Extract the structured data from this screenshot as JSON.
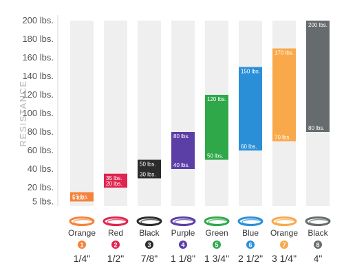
{
  "chart_data": {
    "type": "bar",
    "subtype": "floating-range",
    "ylabel": "RESISTANCE",
    "y_ticks": [
      "200 lbs.",
      "180 lbs.",
      "160 lbs.",
      "140 lbs.",
      "120 lbs.",
      "100 lbs.",
      "80 lbs.",
      "60 lbs.",
      "40 lbs.",
      "20 lbs.",
      "5 lbs."
    ],
    "y_tick_values": [
      200,
      180,
      160,
      140,
      120,
      100,
      80,
      60,
      40,
      20,
      5
    ],
    "ylim": [
      0,
      200
    ],
    "grid": false,
    "bands": [
      {
        "number": "1",
        "name": "Orange",
        "size": "1/4\"",
        "min": 5,
        "max": 15,
        "min_label": "5 lbs.",
        "max_label": "15 lbs.",
        "color": "#f5823b",
        "icon": "orange-band-icon"
      },
      {
        "number": "2",
        "name": "Red",
        "size": "1/2\"",
        "min": 20,
        "max": 35,
        "min_label": "20 lbs.",
        "max_label": "35 lbs.",
        "color": "#e0254f",
        "icon": "red-band-icon"
      },
      {
        "number": "3",
        "name": "Black",
        "size": "7/8\"",
        "min": 30,
        "max": 50,
        "min_label": "30 lbs.",
        "max_label": "50 lbs.",
        "color": "#2b2b2b",
        "icon": "black-band-icon"
      },
      {
        "number": "4",
        "name": "Purple",
        "size": "1 1/8\"",
        "min": 40,
        "max": 80,
        "min_label": "40 lbs.",
        "max_label": "80 lbs.",
        "color": "#5b3fa6",
        "icon": "purple-band-icon"
      },
      {
        "number": "5",
        "name": "Green",
        "size": "1 3/4\"",
        "min": 50,
        "max": 120,
        "min_label": "50 lbs.",
        "max_label": "120 lbs.",
        "color": "#2fa84a",
        "icon": "green-band-icon"
      },
      {
        "number": "6",
        "name": "Blue",
        "size": "2 1/2\"",
        "min": 60,
        "max": 150,
        "min_label": "60 lbs.",
        "max_label": "150 lbs.",
        "color": "#2b8fd8",
        "icon": "blue-band-icon"
      },
      {
        "number": "7",
        "name": "Orange",
        "size": "3 1/4\"",
        "min": 70,
        "max": 170,
        "min_label": "70 lbs.",
        "max_label": "170 lbs.",
        "color": "#f9a94a",
        "icon": "light-orange-band-icon"
      },
      {
        "number": "8",
        "name": "Black",
        "size": "4\"",
        "min": 80,
        "max": 200,
        "min_label": "80 lbs.",
        "max_label": "200 lbs.",
        "color": "#666b6d",
        "icon": "grey-band-icon"
      }
    ],
    "column_background_color": "#efefef",
    "badge_number_color": "#6b6b6b"
  }
}
